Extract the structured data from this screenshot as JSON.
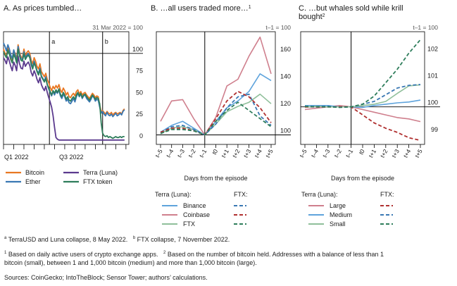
{
  "chart_data": [
    {
      "panel": "A",
      "type": "line",
      "title": "A. As prices tumbled…",
      "index_note": "31 Mar 2022 = 100",
      "x_ticks": [
        "Q1 2022",
        "Q3 2022"
      ],
      "markers": [
        "a",
        "b"
      ],
      "yticks": [
        0,
        25,
        50,
        75,
        100
      ],
      "ylim": [
        -5,
        125
      ],
      "series": [
        {
          "name": "Bitcoin",
          "color": "#e87722",
          "x": [
            0,
            2,
            4,
            6,
            8,
            10,
            12,
            14,
            16,
            18,
            20,
            22,
            24,
            26,
            28,
            30,
            32,
            34,
            36,
            38,
            40,
            42,
            44,
            46,
            48,
            50,
            52,
            54,
            56,
            58,
            60,
            62,
            64,
            66,
            68,
            70,
            72,
            74,
            76,
            78,
            80,
            82,
            84,
            86,
            88,
            90,
            92,
            94,
            96,
            98,
            100,
            102,
            104,
            106,
            108,
            110,
            112,
            114,
            116,
            118,
            120,
            122,
            124,
            126,
            128,
            130,
            132,
            134,
            136,
            138,
            140,
            142,
            144,
            146,
            148,
            150,
            152,
            154,
            156,
            158,
            160,
            162,
            164,
            166
          ],
          "y": [
            105,
            100,
            96,
            108,
            103,
            95,
            91,
            103,
            100,
            93,
            110,
            101,
            96,
            95,
            105,
            97,
            101,
            103,
            100,
            92,
            88,
            95,
            91,
            85,
            82,
            88,
            79,
            76,
            73,
            77,
            70,
            66,
            61,
            57,
            62,
            59,
            63,
            60,
            64,
            58,
            55,
            60,
            57,
            52,
            55,
            50,
            49,
            52,
            54,
            51,
            56,
            58,
            53,
            56,
            52,
            54,
            55,
            52,
            50,
            48,
            51,
            54,
            52,
            49,
            51,
            50,
            40,
            33,
            34,
            32,
            30,
            33,
            31,
            30,
            32,
            29,
            31,
            32,
            30,
            31,
            32,
            30,
            34,
            36
          ]
        },
        {
          "name": "Ether",
          "color": "#3a78b3",
          "x": [
            0,
            2,
            4,
            6,
            8,
            10,
            12,
            14,
            16,
            18,
            20,
            22,
            24,
            26,
            28,
            30,
            32,
            34,
            36,
            38,
            40,
            42,
            44,
            46,
            48,
            50,
            52,
            54,
            56,
            58,
            60,
            62,
            64,
            66,
            68,
            70,
            72,
            74,
            76,
            78,
            80,
            82,
            84,
            86,
            88,
            90,
            92,
            94,
            96,
            98,
            100,
            102,
            104,
            106,
            108,
            110,
            112,
            114,
            116,
            118,
            120,
            122,
            124,
            126,
            128,
            130,
            132,
            134,
            136,
            138,
            140,
            142,
            144,
            146,
            148,
            150,
            152,
            154,
            156,
            158,
            160,
            162,
            164,
            166
          ],
          "y": [
            112,
            108,
            103,
            110,
            105,
            98,
            94,
            104,
            98,
            90,
            108,
            99,
            94,
            93,
            102,
            95,
            98,
            100,
            97,
            89,
            84,
            91,
            86,
            80,
            77,
            83,
            74,
            71,
            68,
            73,
            64,
            59,
            55,
            51,
            56,
            52,
            56,
            54,
            58,
            51,
            48,
            53,
            50,
            45,
            47,
            43,
            42,
            45,
            48,
            44,
            50,
            54,
            50,
            53,
            48,
            51,
            52,
            48,
            46,
            44,
            47,
            51,
            49,
            45,
            47,
            46,
            38,
            31,
            33,
            30,
            28,
            32,
            29,
            28,
            30,
            27,
            29,
            31,
            28,
            29,
            31,
            29,
            33,
            35
          ]
        },
        {
          "name": "Terra (Luna)",
          "color": "#5b3a8e",
          "x": [
            0,
            2,
            4,
            6,
            8,
            10,
            12,
            14,
            16,
            18,
            20,
            22,
            24,
            26,
            28,
            30,
            32,
            34,
            36,
            38,
            40,
            42,
            44,
            46,
            48,
            50,
            52,
            54,
            56,
            58,
            60,
            62,
            64,
            66,
            68,
            70,
            72,
            74,
            76,
            78,
            80,
            82,
            84,
            86,
            88,
            90,
            92,
            94,
            96,
            98,
            100,
            102,
            104,
            106,
            108,
            110,
            112,
            114,
            116,
            118,
            120,
            122,
            124,
            126,
            128,
            130,
            132,
            134,
            136,
            138,
            140,
            142,
            144,
            146,
            148,
            150,
            152,
            154,
            156,
            158,
            160,
            162,
            164,
            166
          ],
          "y": [
            95,
            92,
            88,
            96,
            91,
            85,
            80,
            90,
            86,
            80,
            97,
            88,
            83,
            82,
            91,
            85,
            88,
            90,
            86,
            78,
            74,
            80,
            76,
            70,
            66,
            72,
            64,
            60,
            57,
            62,
            55,
            49,
            44,
            38,
            28,
            15,
            3,
            1,
            0,
            0,
            0,
            0,
            0,
            0,
            0,
            0,
            0,
            0,
            0,
            0,
            0,
            0,
            0,
            0,
            0,
            0,
            0,
            0,
            0,
            0,
            0,
            0,
            0,
            0,
            0,
            0,
            0,
            0,
            0,
            0,
            0,
            0,
            0,
            0,
            0,
            0,
            0,
            0,
            0,
            0,
            0,
            0,
            0,
            0
          ]
        },
        {
          "name": "FTX token",
          "color": "#2e7d5b",
          "x": [
            0,
            2,
            4,
            6,
            8,
            10,
            12,
            14,
            16,
            18,
            20,
            22,
            24,
            26,
            28,
            30,
            32,
            34,
            36,
            38,
            40,
            42,
            44,
            46,
            48,
            50,
            52,
            54,
            56,
            58,
            60,
            62,
            64,
            66,
            68,
            70,
            72,
            74,
            76,
            78,
            80,
            82,
            84,
            86,
            88,
            90,
            92,
            94,
            96,
            98,
            100,
            102,
            104,
            106,
            108,
            110,
            112,
            114,
            116,
            118,
            120,
            122,
            124,
            126,
            128,
            130,
            132,
            134,
            136,
            138,
            140,
            142,
            144,
            146,
            148,
            150,
            152,
            154,
            156,
            158,
            160,
            162,
            164,
            166
          ],
          "y": [
            102,
            98,
            95,
            104,
            99,
            93,
            89,
            99,
            95,
            89,
            105,
            97,
            92,
            91,
            100,
            93,
            96,
            98,
            95,
            87,
            82,
            89,
            85,
            79,
            75,
            81,
            73,
            70,
            67,
            71,
            64,
            60,
            56,
            52,
            57,
            54,
            58,
            55,
            59,
            53,
            50,
            55,
            52,
            47,
            50,
            46,
            45,
            48,
            50,
            47,
            52,
            55,
            51,
            54,
            49,
            52,
            53,
            50,
            48,
            46,
            49,
            52,
            50,
            47,
            49,
            48,
            42,
            20,
            8,
            5,
            4,
            5,
            3,
            4,
            3,
            2,
            3,
            4,
            3,
            3,
            4,
            3,
            4,
            4
          ]
        }
      ]
    },
    {
      "panel": "B",
      "type": "line",
      "title": "B. …all users traded more…",
      "title_sup": "1",
      "index_note": "t–1 = 100",
      "x_categories": [
        "t–5",
        "t–4",
        "t–3",
        "t–2",
        "t–1",
        "t0",
        "t+1",
        "t+2",
        "t+3",
        "t+4",
        "t+5"
      ],
      "xlabel": "Days from the episode",
      "yticks": [
        100,
        120,
        140,
        160
      ],
      "ylim": [
        93,
        176
      ],
      "series": [
        {
          "name": "Binance",
          "group": "Terra (Luna)",
          "color": "#5ea3dc",
          "dash": false,
          "values": [
            102,
            107,
            110,
            105,
            100,
            110,
            120,
            125,
            132,
            145,
            140
          ]
        },
        {
          "name": "Coinbase",
          "group": "Terra (Luna)",
          "color": "#cf7f8d",
          "dash": false,
          "values": [
            110,
            125,
            126,
            112,
            100,
            113,
            136,
            141,
            158,
            172,
            145
          ]
        },
        {
          "name": "FTX",
          "group": "Terra (Luna)",
          "color": "#8fbf9a",
          "dash": false,
          "values": [
            101,
            105,
            106,
            104,
            100,
            108,
            117,
            121,
            124,
            130,
            123
          ]
        },
        {
          "name": "Binance",
          "group": "FTX",
          "color": "#3a78b3",
          "dash": true,
          "values": [
            102,
            106,
            107,
            104,
            100,
            108,
            120,
            128,
            130,
            114,
            107
          ]
        },
        {
          "name": "Coinbase",
          "group": "FTX",
          "color": "#b03030",
          "dash": true,
          "values": [
            102,
            105,
            105,
            103,
            100,
            112,
            125,
            132,
            128,
            120,
            109
          ]
        },
        {
          "name": "FTX",
          "group": "FTX",
          "color": "#2e7d5b",
          "dash": true,
          "values": [
            101,
            104,
            104,
            103,
            100,
            110,
            118,
            124,
            118,
            112,
            106
          ]
        }
      ]
    },
    {
      "panel": "C",
      "type": "line",
      "title": "C. …but whales sold while krill bought",
      "title_sup": "2",
      "index_note": "t–1 = 100",
      "x_categories": [
        "t–5",
        "t–4",
        "t–3",
        "t–2",
        "t–1",
        "t0",
        "t+1",
        "t+2",
        "t+3",
        "t+4",
        "t+5"
      ],
      "xlabel": "Days from the episode",
      "yticks": [
        99,
        100,
        101,
        102
      ],
      "ylim": [
        98.6,
        102.8
      ],
      "series": [
        {
          "name": "Large",
          "group": "Terra (Luna)",
          "color": "#cf7f8d",
          "dash": false,
          "values": [
            99.9,
            99.95,
            100.0,
            100.05,
            100.0,
            99.9,
            99.8,
            99.7,
            99.6,
            99.55,
            99.45
          ]
        },
        {
          "name": "Medium",
          "group": "Terra (Luna)",
          "color": "#5ea3dc",
          "dash": false,
          "values": [
            100.05,
            100.05,
            100.05,
            100.0,
            100.0,
            99.98,
            100.05,
            100.1,
            100.15,
            100.18,
            100.25
          ]
        },
        {
          "name": "Small",
          "group": "Terra (Luna)",
          "color": "#8fbf9a",
          "dash": false,
          "values": [
            99.98,
            100.02,
            100.0,
            100.0,
            100.0,
            100.05,
            100.1,
            100.2,
            100.5,
            100.78,
            100.82
          ]
        },
        {
          "name": "Large",
          "group": "FTX",
          "color": "#b03030",
          "dash": true,
          "values": [
            100.0,
            100.0,
            100.0,
            100.0,
            100.0,
            99.7,
            99.4,
            99.2,
            99.05,
            98.85,
            98.75
          ]
        },
        {
          "name": "Medium",
          "group": "FTX",
          "color": "#3a78b3",
          "dash": true,
          "values": [
            100.02,
            100.0,
            100.02,
            99.98,
            100.0,
            100.1,
            100.2,
            100.45,
            100.7,
            100.8,
            100.83
          ]
        },
        {
          "name": "Small",
          "group": "FTX",
          "color": "#2e7d5b",
          "dash": true,
          "values": [
            100.02,
            100.0,
            100.0,
            99.98,
            100.0,
            100.1,
            100.4,
            100.9,
            101.4,
            102.0,
            102.5
          ]
        }
      ]
    }
  ],
  "legends": {
    "a_items": [
      "Bitcoin",
      "Terra (Luna)",
      "Ether",
      "FTX token"
    ],
    "b_header_left": "Terra (Luna):",
    "b_header_right": "FTX:",
    "b_rows": [
      "Binance",
      "Coinbase",
      "FTX"
    ],
    "c_header_left": "Terra (Luna):",
    "c_header_right": "FTX:",
    "c_rows": [
      "Large",
      "Medium",
      "Small"
    ]
  },
  "footnotes": {
    "note_a_marker": "a",
    "note_a": "TerraUSD and Luna collapse, 8 May 2022.",
    "note_b_marker": "b",
    "note_b": "FTX collapse, 7 November 2022.",
    "note_1_marker": "1",
    "note_1": "Based on daily active users of crypto exchange apps.",
    "note_2_marker": "2",
    "note_2_line1": "Based on the number of bitcoin held. Addresses with a balance of less than 1",
    "note_2_line2": "bitcoin (small), between 1 and 1,000 bitcoin (medium) and more than 1,000 bitcoin (large).",
    "sources": "Sources: CoinGecko; IntoTheBlock; Sensor Tower; authors’ calculations."
  }
}
